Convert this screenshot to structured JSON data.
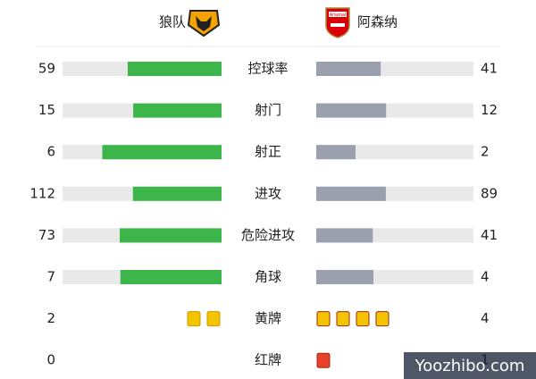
{
  "header": {
    "home": "狼队",
    "away": "阿森纳",
    "away_logo_text": "Arsenal"
  },
  "stats": [
    {
      "label": "控球率",
      "home": 59,
      "away": 41
    },
    {
      "label": "射门",
      "home": 15,
      "away": 12
    },
    {
      "label": "射正",
      "home": 6,
      "away": 2
    },
    {
      "label": "进攻",
      "home": 112,
      "away": 89
    },
    {
      "label": "危险进攻",
      "home": 73,
      "away": 41
    },
    {
      "label": "角球",
      "home": 7,
      "away": 4
    }
  ],
  "cards": [
    {
      "label": "黄牌",
      "home": 2,
      "away": 4,
      "color": "#f5c400"
    },
    {
      "label": "红牌",
      "home": 0,
      "away": 1,
      "color": "#e8412c"
    }
  ],
  "watermark": "Yoozhibo.com"
}
